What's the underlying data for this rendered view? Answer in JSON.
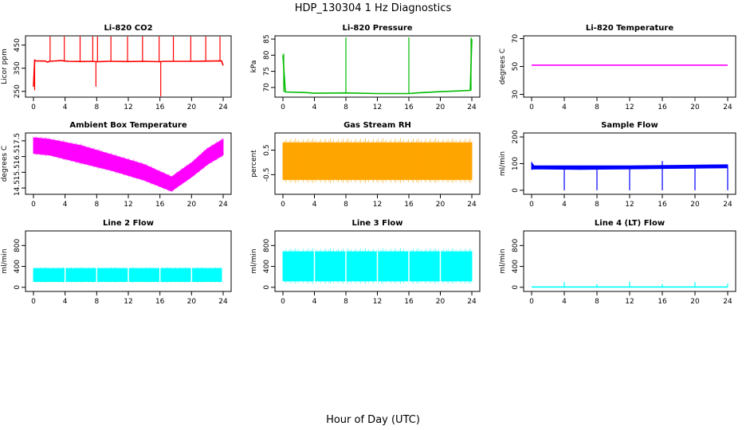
{
  "figure": {
    "title": "HDP_130304  1 Hz Diagnostics",
    "xlabel": "Hour of Day (UTC)"
  },
  "chart_data": [
    {
      "type": "line",
      "title": "Li-820 CO2",
      "xlabel": "",
      "ylabel": "Licor ppm",
      "color": "#ff0000",
      "xlim": [
        0,
        24
      ],
      "ylim": [
        225,
        490
      ],
      "xticks": [
        0,
        4,
        8,
        12,
        16,
        20,
        24
      ],
      "yticks": [
        250,
        350,
        450
      ],
      "series": [
        {
          "kind": "line",
          "x": [
            0,
            0.15,
            0.3,
            1.5,
            1.8,
            2,
            3.5,
            4,
            4.5,
            6,
            7.5,
            8,
            9.5,
            10,
            12,
            14,
            16,
            16.5,
            18,
            20,
            22,
            23.8,
            24
          ],
          "y": [
            270,
            385,
            382,
            381,
            376,
            380,
            383,
            381,
            380,
            379,
            380,
            378,
            380,
            380,
            379,
            380,
            378,
            380,
            380,
            380,
            381,
            382,
            362
          ]
        }
      ],
      "spikes": [
        {
          "x": 2.1,
          "y0": 380,
          "y1": 487
        },
        {
          "x": 3.9,
          "y0": 380,
          "y1": 487
        },
        {
          "x": 5.9,
          "y0": 380,
          "y1": 487
        },
        {
          "x": 7.5,
          "y0": 380,
          "y1": 487
        },
        {
          "x": 8.1,
          "y0": 380,
          "y1": 487
        },
        {
          "x": 9.8,
          "y0": 380,
          "y1": 487
        },
        {
          "x": 11.9,
          "y0": 380,
          "y1": 487
        },
        {
          "x": 13.8,
          "y0": 380,
          "y1": 487
        },
        {
          "x": 15.9,
          "y0": 380,
          "y1": 487
        },
        {
          "x": 17.7,
          "y0": 380,
          "y1": 487
        },
        {
          "x": 19.9,
          "y0": 380,
          "y1": 487
        },
        {
          "x": 21.8,
          "y0": 380,
          "y1": 487
        },
        {
          "x": 23.6,
          "y0": 380,
          "y1": 487
        },
        {
          "x": 7.9,
          "y0": 380,
          "y1": 270
        },
        {
          "x": 16.1,
          "y0": 380,
          "y1": 228
        },
        {
          "x": 0.15,
          "y0": 380,
          "y1": 255
        }
      ]
    },
    {
      "type": "line",
      "title": "Li-820 Pressure",
      "xlabel": "",
      "ylabel": "kPa",
      "color": "#00bb00",
      "xlim": [
        0,
        24
      ],
      "ylim": [
        67,
        86
      ],
      "xticks": [
        0,
        4,
        8,
        12,
        16,
        20,
        24
      ],
      "yticks": [
        70,
        75,
        80,
        85
      ],
      "series": [
        {
          "kind": "line",
          "x": [
            0,
            0.3,
            3,
            4,
            8,
            12,
            16,
            17,
            20,
            22,
            23.8,
            24
          ],
          "y": [
            80,
            68.6,
            68.4,
            68.2,
            68.3,
            68.1,
            68.1,
            68.3,
            68.7,
            68.9,
            69.1,
            85
          ]
        }
      ],
      "spikes": [
        {
          "x": 8.0,
          "y0": 68.3,
          "y1": 85.5
        },
        {
          "x": 16.0,
          "y0": 68.1,
          "y1": 85.5
        },
        {
          "x": 23.9,
          "y0": 69.1,
          "y1": 85.5
        },
        {
          "x": 0.1,
          "y0": 68.6,
          "y1": 80.5
        }
      ]
    },
    {
      "type": "line",
      "title": "Li-820 Temperature",
      "xlabel": "",
      "ylabel": "degrees C",
      "color": "#ff00ff",
      "xlim": [
        0,
        24
      ],
      "ylim": [
        28,
        72
      ],
      "xticks": [
        0,
        4,
        8,
        12,
        16,
        20,
        24
      ],
      "yticks": [
        30,
        50,
        70
      ],
      "series": [
        {
          "kind": "line",
          "x": [
            0,
            24
          ],
          "y": [
            51,
            51
          ]
        }
      ],
      "spikes": []
    },
    {
      "type": "area",
      "title": "Ambient Box Temperature",
      "xlabel": "",
      "ylabel": "degrees C",
      "color": "#ff00ff",
      "xlim": [
        0,
        24
      ],
      "ylim": [
        14.1,
        18.0
      ],
      "xticks": [
        0,
        4,
        8,
        12,
        16,
        20,
        24
      ],
      "yticks": [
        14.5,
        15.5,
        16.5,
        17.5
      ],
      "series": [
        {
          "kind": "band",
          "x": [
            0,
            2,
            6,
            10,
            14,
            17.5,
            18,
            20,
            22,
            24
          ],
          "lower": [
            16.7,
            16.6,
            16.1,
            15.6,
            15.0,
            14.3,
            14.5,
            15.2,
            16.0,
            16.6
          ],
          "upper": [
            17.7,
            17.6,
            17.2,
            16.6,
            16.0,
            15.2,
            15.4,
            16.1,
            17.0,
            17.6
          ]
        }
      ],
      "spikes": []
    },
    {
      "type": "area",
      "title": "Gas Stream RH",
      "xlabel": "",
      "ylabel": "percent",
      "color": "#ffa500",
      "xlim": [
        0,
        24
      ],
      "ylim": [
        -1.3,
        1.2
      ],
      "xticks": [
        0,
        4,
        8,
        12,
        16,
        20,
        24
      ],
      "yticks": [
        -0.5,
        0.5
      ],
      "series": [
        {
          "kind": "band",
          "x": [
            0,
            24
          ],
          "lower": [
            -0.7,
            -0.7
          ],
          "upper": [
            0.8,
            0.8
          ]
        }
      ],
      "spikes": []
    },
    {
      "type": "line",
      "title": "Sample Flow",
      "xlabel": "",
      "ylabel": "ml/min",
      "color": "#0000ff",
      "xlim": [
        0,
        24
      ],
      "ylim": [
        -15,
        215
      ],
      "xticks": [
        0,
        4,
        8,
        12,
        16,
        20,
        24
      ],
      "yticks": [
        0,
        100,
        200
      ],
      "series": [
        {
          "kind": "band",
          "x": [
            0,
            0.3,
            6,
            12,
            18,
            24
          ],
          "lower": [
            78,
            80,
            78,
            80,
            82,
            84
          ],
          "upper": [
            105,
            92,
            92,
            92,
            94,
            96
          ]
        }
      ],
      "spikes": [
        {
          "x": 4.0,
          "y0": 85,
          "y1": 0
        },
        {
          "x": 8.0,
          "y0": 85,
          "y1": 0
        },
        {
          "x": 12.0,
          "y0": 85,
          "y1": 0
        },
        {
          "x": 16.0,
          "y0": 85,
          "y1": 0
        },
        {
          "x": 20.0,
          "y0": 85,
          "y1": 0
        },
        {
          "x": 24.0,
          "y0": 88,
          "y1": 0
        },
        {
          "x": 16.0,
          "y0": 90,
          "y1": 110
        }
      ]
    },
    {
      "type": "area",
      "title": "Line 2 Flow",
      "xlabel": "",
      "ylabel": "ml/min",
      "color": "#00ffff",
      "xlim": [
        0,
        24
      ],
      "ylim": [
        -80,
        1080
      ],
      "xticks": [
        0,
        4,
        8,
        12,
        16,
        20,
        24
      ],
      "yticks": [
        0,
        400,
        800
      ],
      "series": [
        {
          "kind": "band",
          "x": [
            0,
            23.8
          ],
          "lower": [
            110,
            110
          ],
          "upper": [
            360,
            360
          ]
        }
      ],
      "gaps": [
        4.0,
        8.0,
        12.0,
        16.0,
        20.0
      ],
      "spikes": []
    },
    {
      "type": "area",
      "title": "Line 3 Flow",
      "xlabel": "",
      "ylabel": "ml/min",
      "color": "#00ffff",
      "xlim": [
        0,
        24
      ],
      "ylim": [
        -80,
        1080
      ],
      "xticks": [
        0,
        4,
        8,
        12,
        16,
        20,
        24
      ],
      "yticks": [
        0,
        400,
        800
      ],
      "series": [
        {
          "kind": "band",
          "x": [
            0,
            24
          ],
          "lower": [
            120,
            120
          ],
          "upper": [
            680,
            680
          ]
        }
      ],
      "gaps": [
        4.0,
        8.0,
        12.0,
        16.0,
        20.0
      ],
      "spikes": []
    },
    {
      "type": "line",
      "title": "Line 4 (LT) Flow",
      "xlabel": "",
      "ylabel": "ml/min",
      "color": "#00ffff",
      "xlim": [
        0,
        24
      ],
      "ylim": [
        -80,
        1080
      ],
      "xticks": [
        0,
        4,
        8,
        12,
        16,
        20,
        24
      ],
      "yticks": [
        0,
        400,
        800
      ],
      "series": [
        {
          "kind": "line",
          "x": [
            0,
            24
          ],
          "y": [
            5,
            5
          ]
        }
      ],
      "spikes": [
        {
          "x": 4.0,
          "y0": 5,
          "y1": 100
        },
        {
          "x": 8.0,
          "y0": 5,
          "y1": 60
        },
        {
          "x": 12.0,
          "y0": 5,
          "y1": 110
        },
        {
          "x": 16.0,
          "y0": 5,
          "y1": 60
        },
        {
          "x": 20.0,
          "y0": 5,
          "y1": 100
        },
        {
          "x": 24.0,
          "y0": 5,
          "y1": 70
        }
      ]
    }
  ]
}
